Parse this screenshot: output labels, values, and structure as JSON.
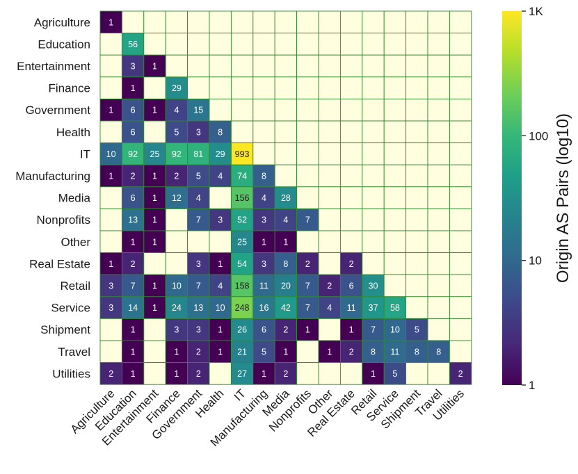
{
  "chart_data": {
    "type": "heatmap",
    "categories": [
      "Agriculture",
      "Education",
      "Entertainment",
      "Finance",
      "Government",
      "Health",
      "IT",
      "Manufacturing",
      "Media",
      "Nonprofits",
      "Other",
      "Real Estate",
      "Retail",
      "Service",
      "Shipment",
      "Travel",
      "Utilities"
    ],
    "matrix": [
      [
        1,
        null,
        null,
        null,
        null,
        null,
        null,
        null,
        null,
        null,
        null,
        null,
        null,
        null,
        null,
        null,
        null
      ],
      [
        null,
        56,
        null,
        null,
        null,
        null,
        null,
        null,
        null,
        null,
        null,
        null,
        null,
        null,
        null,
        null,
        null
      ],
      [
        null,
        3,
        1,
        null,
        null,
        null,
        null,
        null,
        null,
        null,
        null,
        null,
        null,
        null,
        null,
        null,
        null
      ],
      [
        null,
        1,
        null,
        29,
        null,
        null,
        null,
        null,
        null,
        null,
        null,
        null,
        null,
        null,
        null,
        null,
        null
      ],
      [
        1,
        6,
        1,
        4,
        15,
        null,
        null,
        null,
        null,
        null,
        null,
        null,
        null,
        null,
        null,
        null,
        null
      ],
      [
        null,
        6,
        null,
        5,
        3,
        8,
        null,
        null,
        null,
        null,
        null,
        null,
        null,
        null,
        null,
        null,
        null
      ],
      [
        10,
        92,
        25,
        92,
        81,
        29,
        993,
        null,
        null,
        null,
        null,
        null,
        null,
        null,
        null,
        null,
        null
      ],
      [
        1,
        2,
        1,
        2,
        5,
        4,
        74,
        8,
        null,
        null,
        null,
        null,
        null,
        null,
        null,
        null,
        null
      ],
      [
        null,
        6,
        1,
        12,
        4,
        null,
        156,
        4,
        28,
        null,
        null,
        null,
        null,
        null,
        null,
        null,
        null
      ],
      [
        null,
        13,
        1,
        null,
        7,
        3,
        52,
        3,
        4,
        7,
        null,
        null,
        null,
        null,
        null,
        null,
        null
      ],
      [
        null,
        1,
        1,
        null,
        null,
        null,
        25,
        1,
        1,
        null,
        null,
        null,
        null,
        null,
        null,
        null,
        null
      ],
      [
        1,
        2,
        null,
        null,
        3,
        1,
        54,
        3,
        8,
        2,
        null,
        2,
        null,
        null,
        null,
        null,
        null
      ],
      [
        3,
        7,
        1,
        10,
        7,
        4,
        158,
        11,
        20,
        7,
        2,
        6,
        30,
        null,
        null,
        null,
        null
      ],
      [
        3,
        14,
        1,
        24,
        13,
        10,
        248,
        16,
        42,
        7,
        4,
        11,
        37,
        58,
        null,
        null,
        null
      ],
      [
        null,
        1,
        null,
        3,
        3,
        1,
        26,
        6,
        2,
        1,
        null,
        1,
        7,
        10,
        5,
        null,
        null
      ],
      [
        null,
        1,
        null,
        1,
        2,
        1,
        21,
        5,
        1,
        null,
        1,
        2,
        8,
        11,
        8,
        8,
        null
      ],
      [
        2,
        1,
        null,
        1,
        2,
        null,
        27,
        1,
        2,
        null,
        null,
        null,
        1,
        5,
        null,
        null,
        2
      ]
    ],
    "colorbar": {
      "label": "Origin AS Pairs (log10)",
      "scale": "log",
      "range": [
        1,
        1000
      ],
      "ticks": [
        {
          "value": 1,
          "label": "1"
        },
        {
          "value": 10,
          "label": "10"
        },
        {
          "value": 100,
          "label": "100"
        },
        {
          "value": 1000,
          "label": "1K"
        }
      ]
    },
    "colors": {
      "empty_cell": "#ffffe0",
      "grid": "#2e8b2e",
      "axis_text": "#1a1a1a",
      "viridis_stops": [
        "#440154",
        "#482878",
        "#3e4989",
        "#31688e",
        "#26828e",
        "#1f9e89",
        "#35b779",
        "#6ece58",
        "#b5de2b",
        "#fde725"
      ]
    }
  }
}
